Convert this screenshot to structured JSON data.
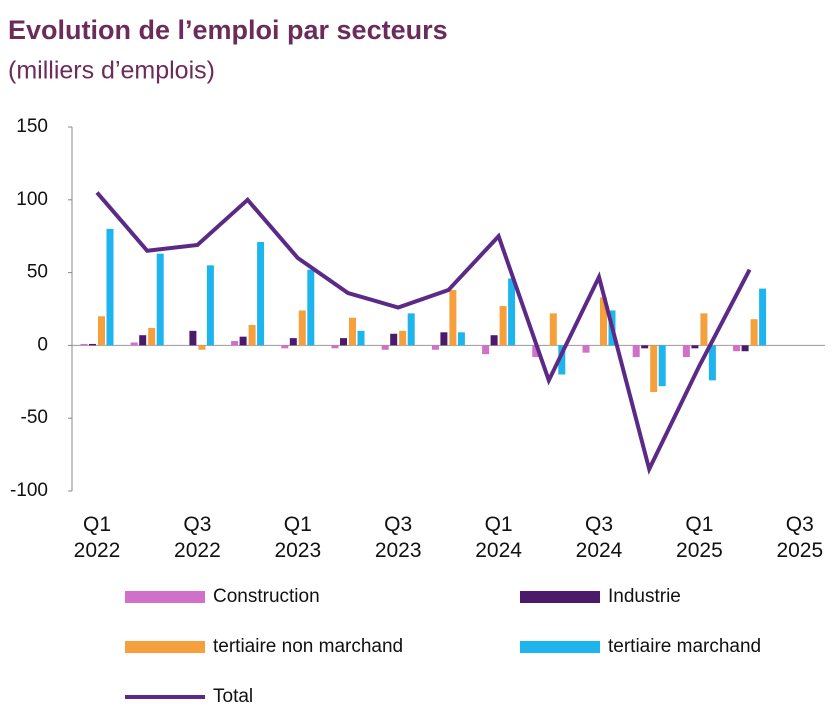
{
  "chart_data": {
    "type": "bar",
    "title": "Evolution de l’emploi par secteurs",
    "subtitle": "(milliers d’emplois)",
    "categories": [
      "Q1\n2022",
      null,
      "Q3\n2022",
      null,
      "Q1\n2023",
      null,
      "Q3\n2023",
      null,
      "Q1\n2024",
      null,
      "Q3\n2024",
      null,
      "Q1\n2025",
      null,
      "Q3\n2025"
    ],
    "ylim": [
      -100,
      150
    ],
    "yticks": [
      150,
      100,
      50,
      0,
      -50,
      -100
    ],
    "series": [
      {
        "name": "Construction",
        "color": "#d070c8",
        "values": [
          1,
          2,
          0,
          3,
          -2,
          -2,
          -3,
          -3,
          -6,
          -8,
          -5,
          -8,
          -8,
          -4,
          null
        ]
      },
      {
        "name": "Industrie",
        "color": "#4b1a6a",
        "values": [
          1,
          7,
          10,
          6,
          5,
          5,
          8,
          9,
          7,
          0,
          0,
          -2,
          -2,
          -4,
          null
        ]
      },
      {
        "name": "tertiaire non marchand",
        "color": "#f5a03c",
        "values": [
          20,
          12,
          -3,
          14,
          24,
          19,
          10,
          38,
          27,
          22,
          33,
          -32,
          22,
          18,
          null
        ]
      },
      {
        "name": "tertiaire marchand",
        "color": "#1eb4ee",
        "values": [
          80,
          63,
          55,
          71,
          52,
          10,
          22,
          9,
          46,
          -20,
          24,
          -28,
          -24,
          39,
          null
        ]
      },
      {
        "name": "Total",
        "color": "#5b2a86",
        "type": "line",
        "values": [
          105,
          65,
          69,
          100,
          60,
          36,
          26,
          38,
          75,
          -24,
          47,
          -85,
          -14,
          52,
          null
        ]
      }
    ]
  }
}
